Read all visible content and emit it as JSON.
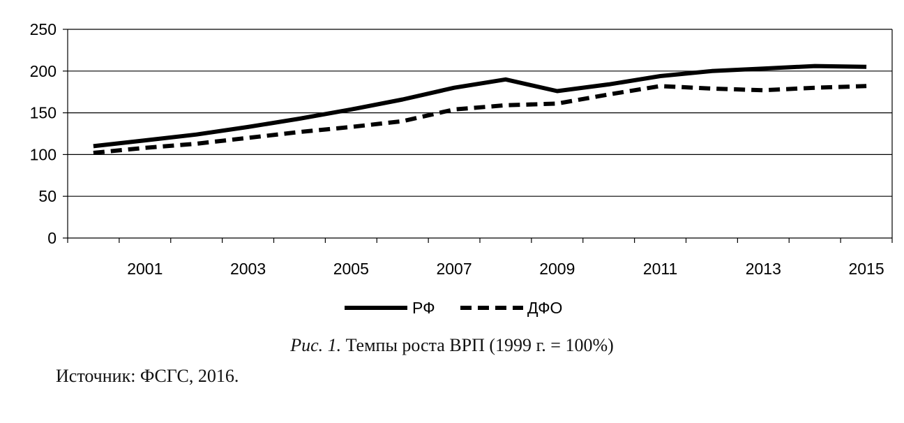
{
  "chart_data": {
    "type": "line",
    "x": [
      2000,
      2001,
      2002,
      2003,
      2004,
      2005,
      2006,
      2007,
      2008,
      2009,
      2010,
      2011,
      2012,
      2013,
      2014,
      2015
    ],
    "x_tick_labels": [
      "2001",
      "2003",
      "2005",
      "2007",
      "2009",
      "2011",
      "2013",
      "2015"
    ],
    "ylim": [
      0,
      250
    ],
    "y_ticks": [
      0,
      50,
      100,
      150,
      200,
      250
    ],
    "grid": true,
    "legend_position": "bottom",
    "series": [
      {
        "name": "РФ",
        "style": "solid",
        "color": "#000000",
        "values": [
          110,
          117,
          124,
          133,
          143,
          154,
          166,
          180,
          190,
          176,
          184,
          194,
          200,
          203,
          206,
          205
        ]
      },
      {
        "name": "ДФО",
        "style": "dashed",
        "color": "#000000",
        "values": [
          102,
          108,
          113,
          120,
          127,
          133,
          140,
          154,
          159,
          161,
          172,
          182,
          179,
          177,
          180,
          182
        ]
      }
    ]
  },
  "caption": {
    "fig_number": "Рис. 1.",
    "text": "Темпы роста ВРП (1999 г. = 100%)"
  },
  "source": "Источник: ФСГС, 2016."
}
